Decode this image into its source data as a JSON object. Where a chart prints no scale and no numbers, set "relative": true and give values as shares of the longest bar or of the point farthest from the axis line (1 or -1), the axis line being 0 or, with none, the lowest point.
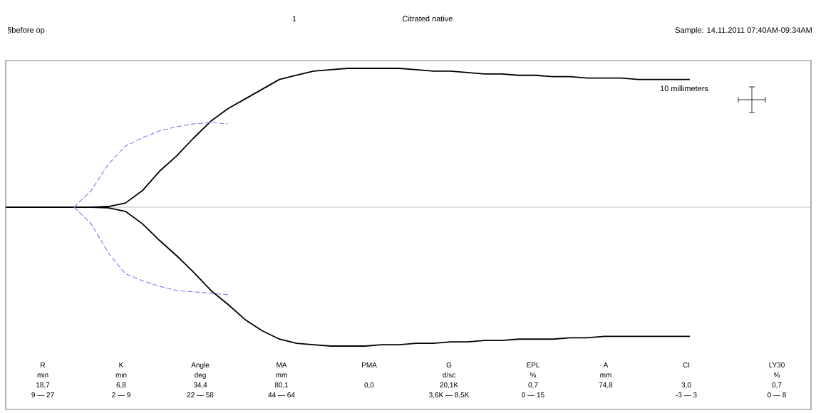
{
  "chart_data": {
    "type": "line",
    "relative": true,
    "title": "Citrated native",
    "annotations": [
      "§before op",
      "1",
      "Sample: 14.11.2011 07:40AM-09:34AM",
      "10 millimeters",
      "R",
      "min",
      "18,7",
      "9 — 27",
      "K",
      "min",
      "6,8",
      "2 — 9",
      "Angle",
      "deg",
      "34,4",
      "22 — 58",
      "MA",
      "mm",
      "80,1",
      "44 — 64",
      "PMA",
      "0,0",
      "G",
      "d/sc",
      "20,1K",
      "3,6K — 8,5K",
      "EPL",
      "%",
      "0,7",
      "0 — 15",
      "A",
      "mm",
      "74,8",
      "CI",
      "3,0",
      "-3 — 3",
      "LY30",
      "%",
      "0,7",
      "0 — 8"
    ],
    "categories": [
      null,
      null,
      null,
      null,
      null,
      null,
      null,
      null,
      null,
      null,
      null,
      null,
      null,
      null,
      null,
      null,
      null,
      null,
      null,
      null,
      null,
      null,
      null,
      null,
      null,
      null,
      null,
      null,
      null,
      null,
      null,
      null,
      null,
      null,
      null,
      null,
      null,
      null,
      null,
      null,
      null
    ],
    "series": [
      {
        "color": "#000000",
        "line_style": "solid",
        "values": [
          0,
          0,
          0,
          0,
          0,
          0,
          0.005,
          0.03,
          0.12,
          0.26,
          0.37,
          0.5,
          0.62,
          0.71,
          0.78,
          0.85,
          0.92,
          0.95,
          0.98,
          0.99,
          1.0,
          1.0,
          1.0,
          1.0,
          0.99,
          0.98,
          0.98,
          0.97,
          0.96,
          0.96,
          0.95,
          0.95,
          0.94,
          0.94,
          0.93,
          0.93,
          0.93,
          0.92,
          0.92,
          0.92,
          0.92
        ]
      },
      {
        "color": "#000000",
        "line_style": "solid",
        "values": [
          0,
          0,
          0,
          0,
          0,
          0,
          -0.005,
          -0.03,
          -0.12,
          -0.24,
          -0.35,
          -0.47,
          -0.6,
          -0.7,
          -0.81,
          -0.89,
          -0.95,
          -0.98,
          -0.99,
          -1.0,
          -1.0,
          -1.0,
          -0.99,
          -0.99,
          -0.98,
          -0.98,
          -0.97,
          -0.97,
          -0.96,
          -0.96,
          -0.95,
          -0.95,
          -0.95,
          -0.94,
          -0.94,
          -0.93,
          -0.93,
          -0.93,
          -0.93,
          -0.93,
          -0.93
        ]
      },
      {
        "color": "#9b6cf0",
        "line_style": "dashed",
        "values": [
          null,
          null,
          null,
          null,
          0,
          0.12,
          0.31,
          0.44,
          0.5,
          0.55,
          0.58,
          0.6,
          0.61,
          0.6,
          null,
          null,
          null,
          null,
          null,
          null,
          null,
          null,
          null,
          null,
          null,
          null,
          null,
          null,
          null,
          null,
          null,
          null,
          null,
          null,
          null,
          null,
          null,
          null,
          null,
          null,
          null
        ]
      },
      {
        "color": "#9b6cf0",
        "line_style": "dashed",
        "values": [
          null,
          null,
          null,
          null,
          0,
          -0.12,
          -0.33,
          -0.48,
          -0.53,
          -0.57,
          -0.6,
          -0.61,
          -0.62,
          -0.63,
          null,
          null,
          null,
          null,
          null,
          null,
          null,
          null,
          null,
          null,
          null,
          null,
          null,
          null,
          null,
          null,
          null,
          null,
          null,
          null,
          null,
          null,
          null,
          null,
          null,
          null,
          null
        ]
      }
    ]
  }
}
